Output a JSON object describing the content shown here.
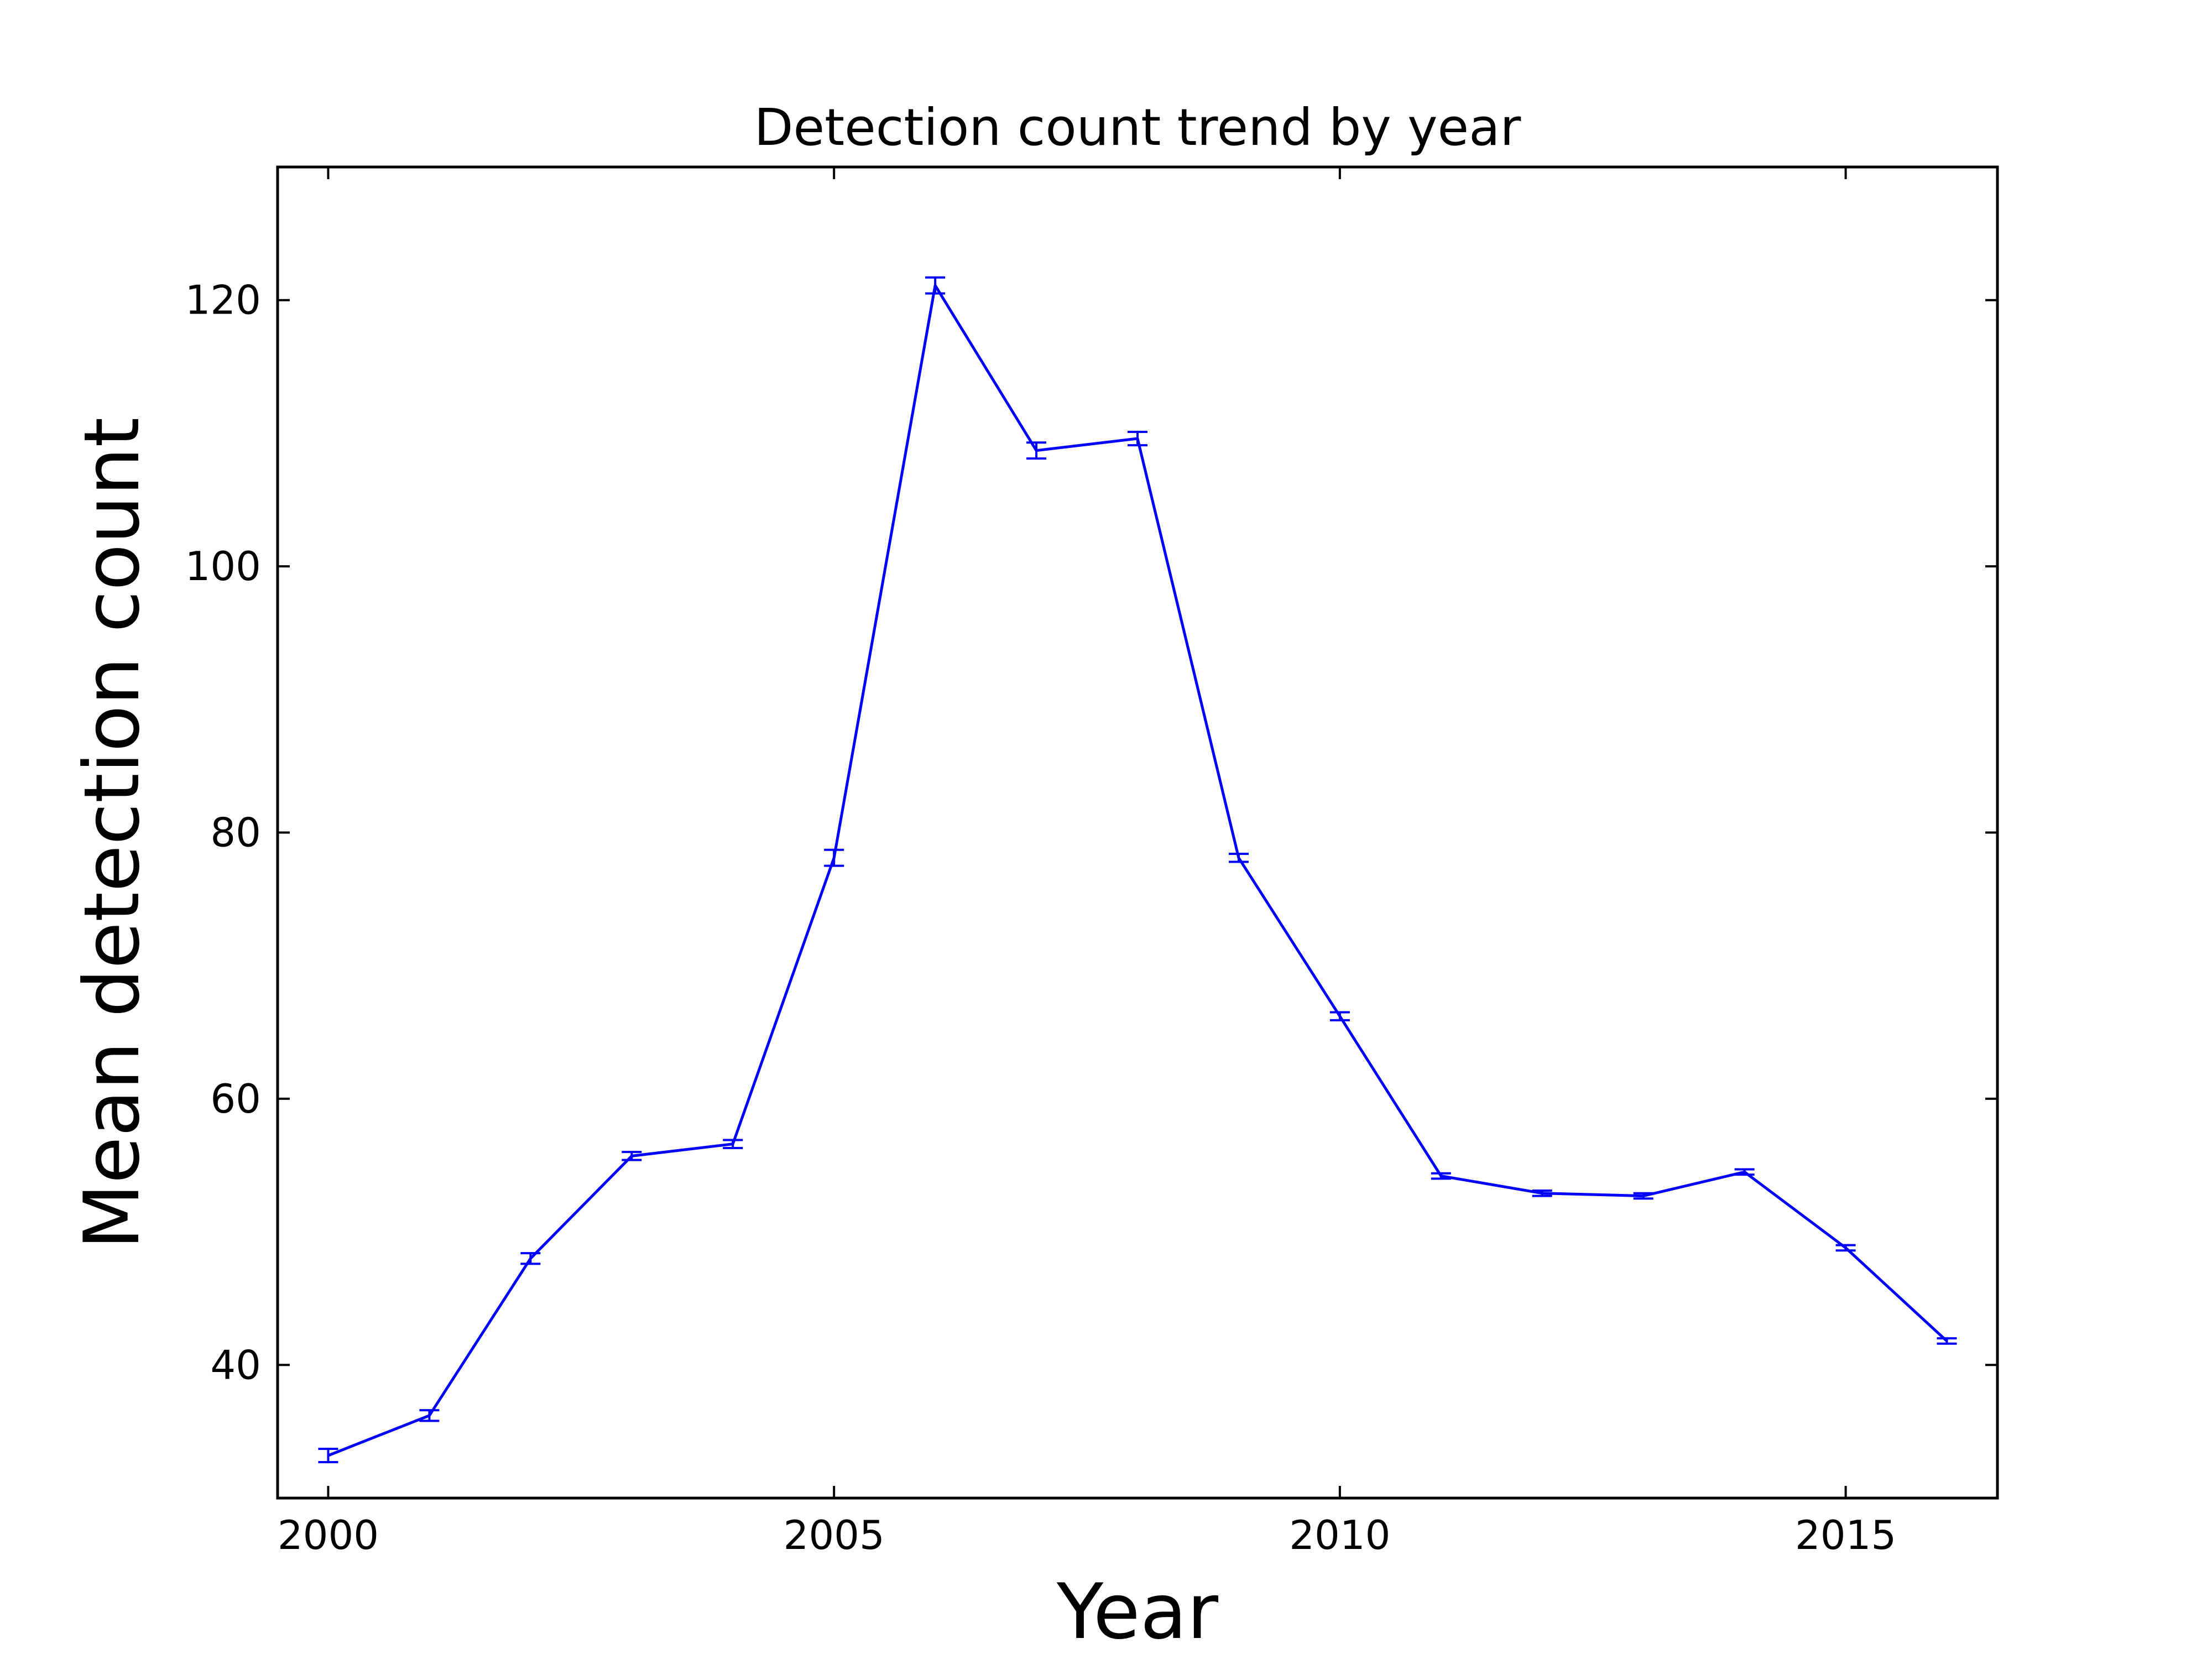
{
  "chart_data": {
    "type": "line",
    "title": "Detection count trend by year",
    "xlabel": "Year",
    "ylabel": "Mean detection count",
    "xlim": [
      1999.5,
      2016.5
    ],
    "ylim": [
      30,
      130
    ],
    "xticks": [
      2000,
      2005,
      2010,
      2015
    ],
    "yticks": [
      40,
      60,
      80,
      100,
      120
    ],
    "grid": false,
    "line_color": "#0000ff",
    "series": [
      {
        "x": [
          2000,
          2001,
          2002,
          2003,
          2004,
          2005,
          2006,
          2007,
          2008,
          2009,
          2010,
          2011,
          2012,
          2013,
          2014,
          2015,
          2016
        ],
        "values": [
          33.2,
          36.2,
          48.0,
          55.7,
          56.6,
          78.1,
          121.1,
          108.7,
          109.6,
          78.1,
          66.2,
          54.2,
          52.9,
          52.7,
          54.5,
          48.8,
          41.8
        ],
        "error": [
          0.5,
          0.4,
          0.4,
          0.3,
          0.3,
          0.6,
          0.6,
          0.6,
          0.5,
          0.3,
          0.3,
          0.2,
          0.2,
          0.2,
          0.2,
          0.2,
          0.2
        ]
      }
    ]
  }
}
